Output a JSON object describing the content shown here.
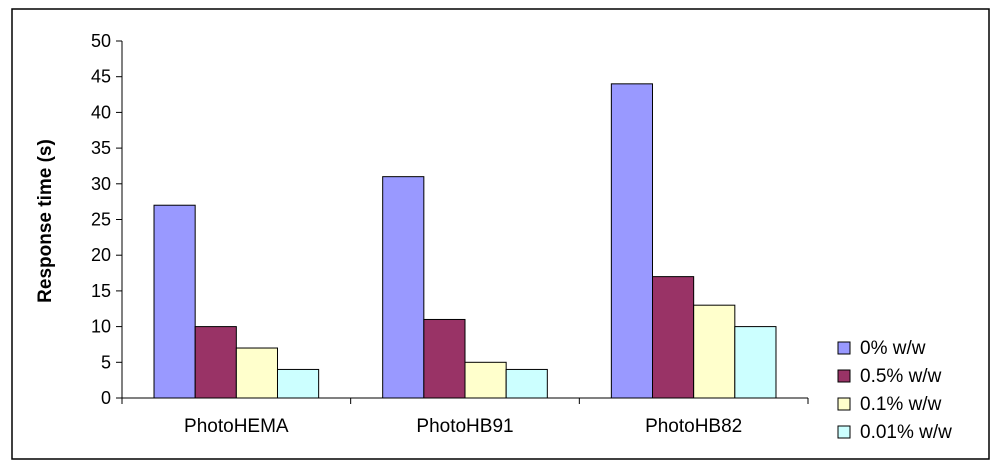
{
  "chart_data": {
    "type": "bar",
    "title": "",
    "xlabel": "",
    "ylabel": "Response time (s)",
    "ylim": [
      0,
      50
    ],
    "yticks": [
      0,
      5,
      10,
      15,
      20,
      25,
      30,
      35,
      40,
      45,
      50
    ],
    "categories": [
      "PhotoHEMA",
      "PhotoHB91",
      "PhotoHB82"
    ],
    "series": [
      {
        "name": "0% w/w",
        "color": "#9999ff",
        "values": [
          27,
          31,
          44
        ]
      },
      {
        "name": "0.5% w/w",
        "color": "#993366",
        "values": [
          10,
          11,
          17
        ]
      },
      {
        "name": "0.1% w/w",
        "color": "#ffffcc",
        "values": [
          7,
          5,
          13
        ]
      },
      {
        "name": "0.01% w/w",
        "color": "#ccffff",
        "values": [
          4,
          4,
          10
        ]
      }
    ],
    "grid": false,
    "legend_position": "right"
  }
}
